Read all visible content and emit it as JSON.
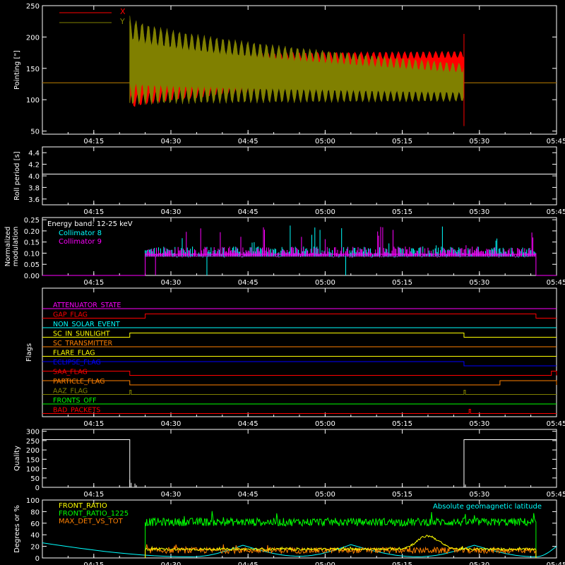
{
  "colors": {
    "background": "#000000",
    "axis": "#ffffff",
    "x": "#ff0000",
    "y": "#808000",
    "collimator8": "#00ffff",
    "collimator9": "#ff00ff",
    "front_ratio": "#ffff00",
    "front_ratio_1225": "#00ff00",
    "max_det": "#ff8000",
    "latitude": "#00ffff"
  },
  "time_ticks": [
    "04:15",
    "04:30",
    "04:45",
    "05:00",
    "05:15",
    "05:30",
    "05:45"
  ],
  "chart_data": [
    {
      "id": "pointing",
      "type": "line",
      "ylabel": "Pointing [\"]",
      "ylim": [
        45,
        250
      ],
      "yticks": [
        50,
        100,
        150,
        200,
        250
      ],
      "xlim": [
        "04:05",
        "05:45"
      ],
      "legend": {
        "placement": "top-left",
        "entries": [
          {
            "name": "X",
            "color": "#ff0000"
          },
          {
            "name": "Y",
            "color": "#808000"
          }
        ]
      },
      "series": [
        {
          "name": "X",
          "baseline": 127,
          "active": [
            "04:22",
            "05:27"
          ],
          "envelope_start": [
            95,
            160
          ],
          "envelope_end": [
            140,
            172
          ]
        },
        {
          "name": "Y",
          "baseline": 127,
          "active": [
            "04:22",
            "05:27"
          ],
          "envelope_start": [
            110,
            215
          ],
          "envelope_end": [
            105,
            150
          ]
        }
      ]
    },
    {
      "id": "roll-period",
      "type": "line",
      "ylabel": "Roll period [s]",
      "ylim": [
        3.5,
        4.5
      ],
      "yticks": [
        3.6,
        3.8,
        4.0,
        4.2,
        4.4
      ],
      "yticklabels": [
        "3.6",
        "3.8",
        "4.0",
        "4.2",
        "4.4"
      ],
      "series": [
        {
          "name": "roll",
          "value": 4.03,
          "range": [
            "04:05",
            "05:45"
          ]
        }
      ]
    },
    {
      "id": "modulation",
      "type": "bar",
      "ylabel": "Normalized modulation",
      "ylim": [
        0,
        0.26
      ],
      "yticks": [
        0,
        0.05,
        0.1,
        0.15,
        0.2,
        0.25
      ],
      "yticklabels": [
        "0.00",
        "0.05",
        "0.10",
        "0.15",
        "0.20",
        "0.25"
      ],
      "annotation": "Energy band: 12-25 keV",
      "legend": {
        "placement": "top-left",
        "entries": [
          {
            "name": "Collimator 8",
            "color": "#00ffff"
          },
          {
            "name": "Collimator 9",
            "color": "#ff00ff"
          }
        ]
      },
      "series": [
        {
          "name": "Collimator 8",
          "base": 0.095,
          "active": [
            "04:25",
            "05:41"
          ],
          "dips": [
            "04:37",
            "05:04"
          ]
        },
        {
          "name": "Collimator 9",
          "base": 0.095,
          "active": [
            "04:25",
            "05:41"
          ],
          "dips": [
            "04:27"
          ]
        }
      ]
    },
    {
      "id": "flags",
      "type": "line",
      "ylabel": "Flags",
      "rows": [
        {
          "name": "ATTENUATOR_STATE",
          "color": "#ff00ff",
          "steps": []
        },
        {
          "name": "GAP_FLAG",
          "color": "#ff0000",
          "steps": [
            [
              "04:25",
              "05:41"
            ]
          ]
        },
        {
          "name": "NON_SOLAR_EVENT",
          "color": "#00ffff",
          "steps": []
        },
        {
          "name": "SC_IN_SUNLIGHT",
          "color": "#ffff00",
          "steps": [
            [
              "04:22",
              "05:27"
            ]
          ]
        },
        {
          "name": "SC_TRANSMITTER",
          "color": "#ff8000",
          "steps": []
        },
        {
          "name": "FLARE_FLAG",
          "color": "#ffff00",
          "steps": []
        },
        {
          "name": "ECLIPSE_FLAG",
          "color": "#0000ff",
          "steps": [
            [
              "04:05",
              "05:27"
            ]
          ]
        },
        {
          "name": "SAA_FLAG",
          "color": "#ff0000",
          "steps": [
            [
              "04:05",
              "04:22"
            ],
            [
              "05:44",
              "05:45"
            ]
          ]
        },
        {
          "name": "PARTICLE_FLAG",
          "color": "#ff8000",
          "steps": [
            [
              "04:05",
              "04:22"
            ],
            [
              "05:34",
              "05:45"
            ]
          ]
        },
        {
          "name": "AAZ_FLAG",
          "color": "#808000",
          "steps": [
            [
              "04:22",
              "04:22"
            ],
            [
              "05:27",
              "05:27"
            ]
          ]
        },
        {
          "name": "FRONTS_OFF",
          "color": "#00ff00",
          "steps": []
        },
        {
          "name": "BAD_PACKETS",
          "color": "#ff0000",
          "steps": [
            [
              "05:28",
              "05:28"
            ]
          ]
        }
      ]
    },
    {
      "id": "quality",
      "type": "line",
      "ylabel": "Quality",
      "ylim": [
        0,
        310
      ],
      "yticks": [
        0,
        50,
        100,
        150,
        200,
        250,
        300
      ],
      "series": [
        {
          "name": "quality",
          "high": 255,
          "segments": [
            [
              "04:05",
              "04:22",
              255
            ],
            [
              "04:22",
              "05:27",
              0
            ],
            [
              "05:27",
              "05:45",
              255
            ]
          ],
          "spikes": [
            [
              "04:22",
              40
            ],
            [
              "04:23",
              20
            ],
            [
              "05:27",
              25
            ]
          ]
        }
      ]
    },
    {
      "id": "ratios",
      "type": "line",
      "ylabel": "Degrees or %",
      "ylim": [
        0,
        100
      ],
      "yticks": [
        0,
        20,
        40,
        60,
        80,
        100
      ],
      "legend": {
        "placement": "top-left",
        "entries": [
          {
            "name": "FRONT_RATIO",
            "color": "#ffff00"
          },
          {
            "name": "FRONT_RATIO_1225",
            "color": "#00ff00"
          },
          {
            "name": "MAX_DET_VS_TOT",
            "color": "#ff8000"
          }
        ]
      },
      "annotation": "Absolute geomagnetic latitude",
      "series": [
        {
          "name": "FRONT_RATIO",
          "base": 15,
          "bump_at": "05:20",
          "bump": 38,
          "active": [
            "04:25",
            "05:41"
          ]
        },
        {
          "name": "FRONT_RATIO_1225",
          "base": 62,
          "active": [
            "04:25",
            "05:41"
          ]
        },
        {
          "name": "MAX_DET_VS_TOT",
          "base": 13,
          "active": [
            "04:25",
            "05:41"
          ]
        },
        {
          "name": "Absolute geomagnetic latitude",
          "peaks": [
            [
              "04:05",
              26
            ],
            [
              "04:44",
              22
            ],
            [
              "05:05",
              23
            ],
            [
              "05:29",
              22
            ]
          ],
          "minima": [
            [
              "04:34",
              2
            ],
            [
              "04:55",
              3
            ],
            [
              "05:18",
              2
            ],
            [
              "05:41",
              2
            ]
          ]
        }
      ]
    }
  ]
}
